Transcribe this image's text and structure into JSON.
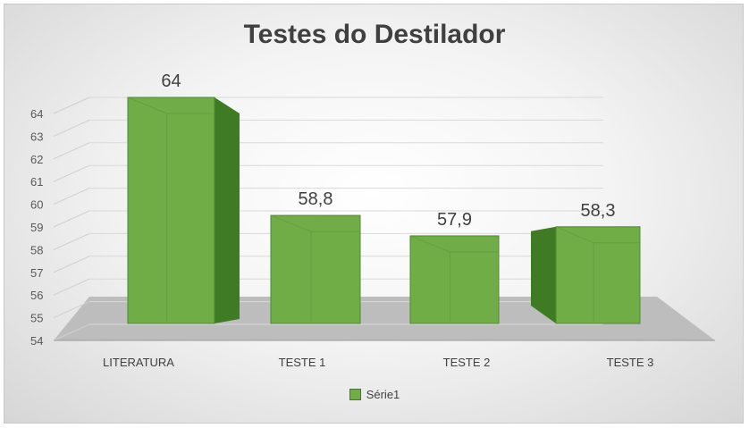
{
  "chart_data": {
    "type": "bar",
    "title": "Testes do Destilador",
    "categories": [
      "LITERATURA",
      "TESTE 1",
      "TESTE 2",
      "TESTE 3"
    ],
    "series": [
      {
        "name": "Série1",
        "values": [
          64,
          58.8,
          57.9,
          58.3
        ]
      }
    ],
    "data_labels": [
      "64",
      "58,8",
      "57,9",
      "58,3"
    ],
    "y_ticks": [
      54,
      55,
      56,
      57,
      58,
      59,
      60,
      61,
      62,
      63,
      64
    ],
    "ylim": [
      54,
      64
    ],
    "grid": true,
    "legend_position": "bottom",
    "style": "3d",
    "colors": {
      "bar_front": "#70ad47",
      "bar_side": "#3f7a25",
      "bar_top": "#86c25e",
      "floor": "#bdbdbd"
    }
  }
}
